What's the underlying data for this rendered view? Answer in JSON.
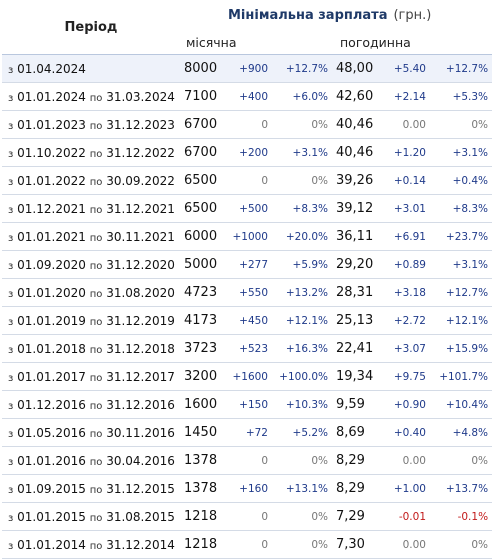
{
  "header": {
    "period_label": "Період",
    "group_label": "Мінімальна зарплата",
    "unit": "(грн.)",
    "monthly_label": "місячна",
    "hourly_label": "погодинна"
  },
  "rows": [
    {
      "from": "01.04.2024",
      "to": "",
      "monthly": "8000",
      "m_abs": "+900",
      "m_pct": "+12.7%",
      "hourly": "48,00",
      "h_abs": "+5.40",
      "h_pct": "+12.7%"
    },
    {
      "from": "01.01.2024",
      "to": "31.03.2024",
      "monthly": "7100",
      "m_abs": "+400",
      "m_pct": "+6.0%",
      "hourly": "42,60",
      "h_abs": "+2.14",
      "h_pct": "+5.3%"
    },
    {
      "from": "01.01.2023",
      "to": "31.12.2023",
      "monthly": "6700",
      "m_abs": "0",
      "m_pct": "0%",
      "hourly": "40,46",
      "h_abs": "0.00",
      "h_pct": "0%"
    },
    {
      "from": "01.10.2022",
      "to": "31.12.2022",
      "monthly": "6700",
      "m_abs": "+200",
      "m_pct": "+3.1%",
      "hourly": "40,46",
      "h_abs": "+1.20",
      "h_pct": "+3.1%"
    },
    {
      "from": "01.01.2022",
      "to": "30.09.2022",
      "monthly": "6500",
      "m_abs": "0",
      "m_pct": "0%",
      "hourly": "39,26",
      "h_abs": "+0.14",
      "h_pct": "+0.4%"
    },
    {
      "from": "01.12.2021",
      "to": "31.12.2021",
      "monthly": "6500",
      "m_abs": "+500",
      "m_pct": "+8.3%",
      "hourly": "39,12",
      "h_abs": "+3.01",
      "h_pct": "+8.3%"
    },
    {
      "from": "01.01.2021",
      "to": "30.11.2021",
      "monthly": "6000",
      "m_abs": "+1000",
      "m_pct": "+20.0%",
      "hourly": "36,11",
      "h_abs": "+6.91",
      "h_pct": "+23.7%"
    },
    {
      "from": "01.09.2020",
      "to": "31.12.2020",
      "monthly": "5000",
      "m_abs": "+277",
      "m_pct": "+5.9%",
      "hourly": "29,20",
      "h_abs": "+0.89",
      "h_pct": "+3.1%"
    },
    {
      "from": "01.01.2020",
      "to": "31.08.2020",
      "monthly": "4723",
      "m_abs": "+550",
      "m_pct": "+13.2%",
      "hourly": "28,31",
      "h_abs": "+3.18",
      "h_pct": "+12.7%"
    },
    {
      "from": "01.01.2019",
      "to": "31.12.2019",
      "monthly": "4173",
      "m_abs": "+450",
      "m_pct": "+12.1%",
      "hourly": "25,13",
      "h_abs": "+2.72",
      "h_pct": "+12.1%"
    },
    {
      "from": "01.01.2018",
      "to": "31.12.2018",
      "monthly": "3723",
      "m_abs": "+523",
      "m_pct": "+16.3%",
      "hourly": "22,41",
      "h_abs": "+3.07",
      "h_pct": "+15.9%"
    },
    {
      "from": "01.01.2017",
      "to": "31.12.2017",
      "monthly": "3200",
      "m_abs": "+1600",
      "m_pct": "+100.0%",
      "hourly": "19,34",
      "h_abs": "+9.75",
      "h_pct": "+101.7%"
    },
    {
      "from": "01.12.2016",
      "to": "31.12.2016",
      "monthly": "1600",
      "m_abs": "+150",
      "m_pct": "+10.3%",
      "hourly": "9,59",
      "h_abs": "+0.90",
      "h_pct": "+10.4%"
    },
    {
      "from": "01.05.2016",
      "to": "30.11.2016",
      "monthly": "1450",
      "m_abs": "+72",
      "m_pct": "+5.2%",
      "hourly": "8,69",
      "h_abs": "+0.40",
      "h_pct": "+4.8%"
    },
    {
      "from": "01.01.2016",
      "to": "30.04.2016",
      "monthly": "1378",
      "m_abs": "0",
      "m_pct": "0%",
      "hourly": "8,29",
      "h_abs": "0.00",
      "h_pct": "0%"
    },
    {
      "from": "01.09.2015",
      "to": "31.12.2015",
      "monthly": "1378",
      "m_abs": "+160",
      "m_pct": "+13.1%",
      "hourly": "8,29",
      "h_abs": "+1.00",
      "h_pct": "+13.7%"
    },
    {
      "from": "01.01.2015",
      "to": "31.08.2015",
      "monthly": "1218",
      "m_abs": "0",
      "m_pct": "0%",
      "hourly": "7,29",
      "h_abs": "-0.01",
      "h_pct": "-0.1%"
    },
    {
      "from": "01.01.2014",
      "to": "31.12.2014",
      "monthly": "1218",
      "m_abs": "0",
      "m_pct": "0%",
      "hourly": "7,30",
      "h_abs": "0.00",
      "h_pct": "0%"
    }
  ],
  "labels": {
    "from_prefix": "з",
    "to_prefix": "по"
  },
  "colors": {
    "positive": "#1f3a8a",
    "negative": "#c21a1a",
    "zero": "#777777",
    "highlight_row": "#eef2fa"
  }
}
